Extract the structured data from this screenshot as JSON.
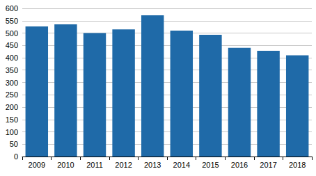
{
  "chart_data": {
    "type": "bar",
    "categories": [
      "2009",
      "2010",
      "2011",
      "2012",
      "2013",
      "2014",
      "2015",
      "2016",
      "2017",
      "2018"
    ],
    "values": [
      527,
      535,
      500,
      515,
      572,
      510,
      493,
      440,
      428,
      410
    ],
    "color": "#1f6aa8",
    "ylim": [
      0,
      600
    ],
    "yticks": [
      0,
      50,
      100,
      150,
      200,
      250,
      300,
      350,
      400,
      450,
      500,
      550,
      600
    ],
    "grid": true
  }
}
